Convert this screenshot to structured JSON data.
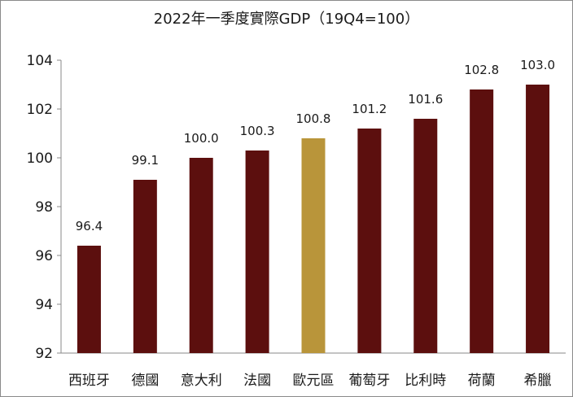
{
  "chart_data": {
    "type": "bar",
    "title": "2022年一季度實際GDP（19Q4=100）",
    "xlabel": "",
    "ylabel": "",
    "categories": [
      "西班牙",
      "德國",
      "意大利",
      "法國",
      "歐元區",
      "葡萄牙",
      "比利時",
      "荷蘭",
      "希臘"
    ],
    "values": [
      96.4,
      99.1,
      100.0,
      100.3,
      100.8,
      101.2,
      101.6,
      102.8,
      103.0
    ],
    "value_labels": [
      "96.4",
      "99.1",
      "100.0",
      "100.3",
      "100.8",
      "101.2",
      "101.6",
      "102.8",
      "103.0"
    ],
    "ylim": [
      92,
      104
    ],
    "yticks": [
      92,
      94,
      96,
      98,
      100,
      102,
      104
    ],
    "grid": false,
    "legend": "none",
    "highlight_category": "歐元區",
    "colors": {
      "bar": "#5c0f0e",
      "highlight": "#b9953a",
      "axis": "#8a8a8a",
      "text": "#1a1a1a"
    }
  }
}
